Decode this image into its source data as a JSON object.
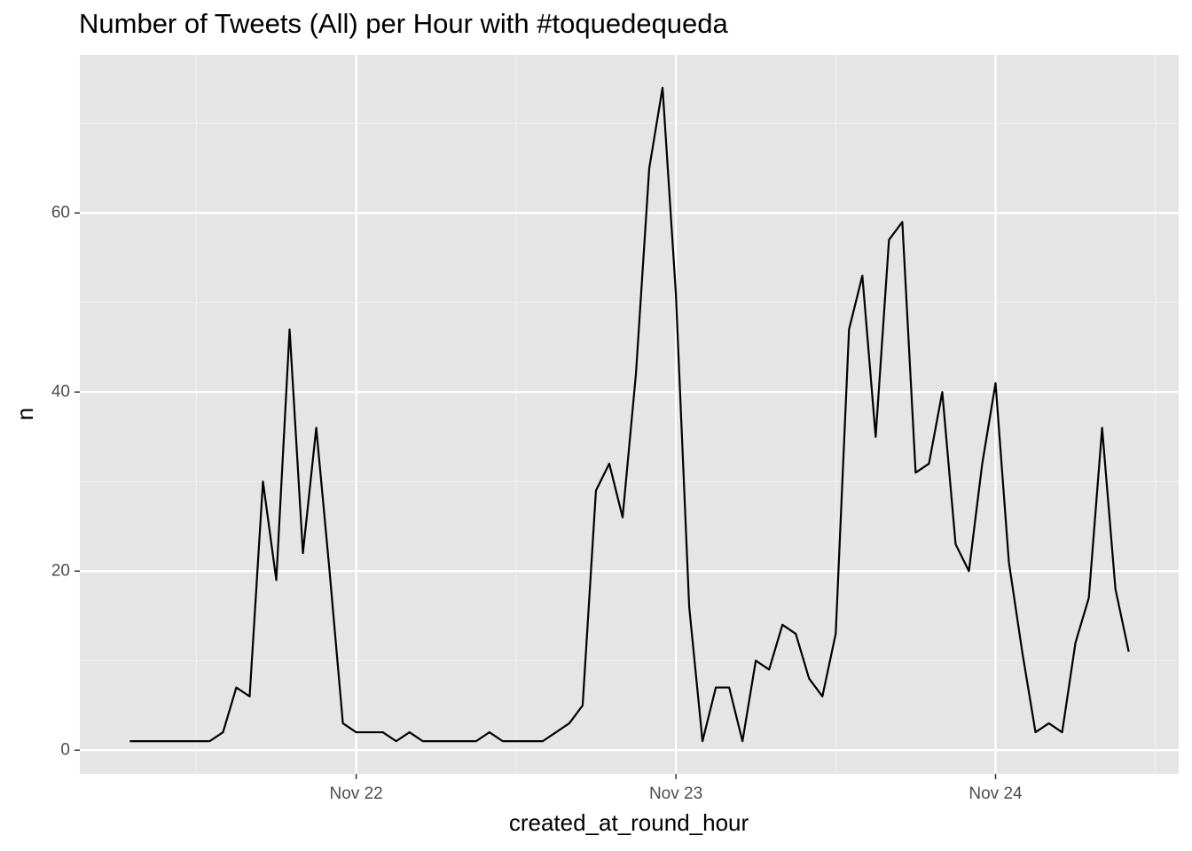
{
  "chart_data": {
    "type": "line",
    "title": "Number of Tweets (All) per Hour with #toquedequeda",
    "x_label": "created_at_round_hour",
    "y_label": "n",
    "x": [
      "Nov 21 07:00",
      "Nov 21 08:00",
      "Nov 21 09:00",
      "Nov 21 10:00",
      "Nov 21 11:00",
      "Nov 21 12:00",
      "Nov 21 13:00",
      "Nov 21 14:00",
      "Nov 21 15:00",
      "Nov 21 16:00",
      "Nov 21 17:00",
      "Nov 21 18:00",
      "Nov 21 19:00",
      "Nov 21 20:00",
      "Nov 21 21:00",
      "Nov 21 22:00",
      "Nov 21 23:00",
      "Nov 22 00:00",
      "Nov 22 01:00",
      "Nov 22 02:00",
      "Nov 22 03:00",
      "Nov 22 04:00",
      "Nov 22 05:00",
      "Nov 22 06:00",
      "Nov 22 07:00",
      "Nov 22 08:00",
      "Nov 22 09:00",
      "Nov 22 10:00",
      "Nov 22 11:00",
      "Nov 22 12:00",
      "Nov 22 13:00",
      "Nov 22 14:00",
      "Nov 22 15:00",
      "Nov 22 16:00",
      "Nov 22 17:00",
      "Nov 22 18:00",
      "Nov 22 19:00",
      "Nov 22 20:00",
      "Nov 22 21:00",
      "Nov 22 22:00",
      "Nov 22 23:00",
      "Nov 23 00:00",
      "Nov 23 01:00",
      "Nov 23 02:00",
      "Nov 23 03:00",
      "Nov 23 04:00",
      "Nov 23 05:00",
      "Nov 23 06:00",
      "Nov 23 07:00",
      "Nov 23 08:00",
      "Nov 23 09:00",
      "Nov 23 10:00",
      "Nov 23 11:00",
      "Nov 23 12:00",
      "Nov 23 13:00",
      "Nov 23 14:00",
      "Nov 23 15:00",
      "Nov 23 16:00",
      "Nov 23 17:00",
      "Nov 23 18:00",
      "Nov 23 19:00",
      "Nov 23 20:00",
      "Nov 23 21:00",
      "Nov 23 22:00",
      "Nov 23 23:00",
      "Nov 24 00:00",
      "Nov 24 01:00",
      "Nov 24 02:00",
      "Nov 24 03:00",
      "Nov 24 04:00",
      "Nov 24 05:00",
      "Nov 24 06:00",
      "Nov 24 07:00",
      "Nov 24 08:00",
      "Nov 24 09:00",
      "Nov 24 10:00"
    ],
    "series": [
      {
        "color": "#000000",
        "values": [
          1,
          1,
          1,
          1,
          1,
          1,
          1,
          2,
          7,
          6,
          30,
          19,
          47,
          22,
          36,
          20,
          3,
          2,
          2,
          2,
          1,
          2,
          1,
          1,
          1,
          1,
          1,
          2,
          1,
          1,
          1,
          1,
          2,
          3,
          5,
          29,
          32,
          26,
          42,
          65,
          74,
          51,
          16,
          1,
          7,
          7,
          1,
          10,
          9,
          14,
          13,
          8,
          6,
          13,
          47,
          53,
          35,
          57,
          59,
          31,
          32,
          40,
          23,
          20,
          32,
          41,
          21,
          11,
          2,
          3,
          2,
          12,
          17,
          36,
          18,
          11
        ]
      }
    ],
    "xlim": [
      "Nov 21 03:15",
      "Nov 24 13:45"
    ],
    "xticks": [
      {
        "value": "Nov 22 00:00",
        "label": "Nov 22"
      },
      {
        "value": "Nov 23 00:00",
        "label": "Nov 23"
      },
      {
        "value": "Nov 24 00:00",
        "label": "Nov 24"
      }
    ],
    "xminorticks": [
      "Nov 21 12:00",
      "Nov 22 12:00",
      "Nov 23 12:00",
      "Nov 24 12:00"
    ],
    "ylim": [
      -2.65,
      77.65
    ],
    "yticks": [
      0,
      20,
      40,
      60
    ],
    "yminorticks": [
      10,
      30,
      50,
      70
    ],
    "grid": true
  }
}
